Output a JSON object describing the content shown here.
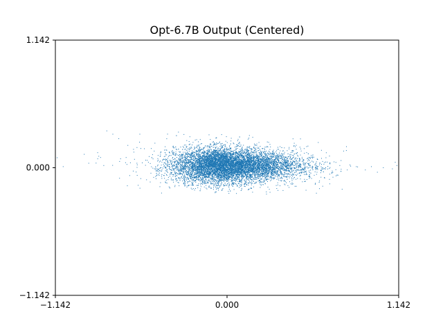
{
  "chart_data": {
    "type": "scatter",
    "title": "Opt-6.7B Output (Centered)",
    "xlabel": "",
    "ylabel": "",
    "xlim": [
      -1.142,
      1.142
    ],
    "ylim": [
      -1.142,
      1.142
    ],
    "x_ticks": [
      -1.142,
      0.0,
      1.142
    ],
    "y_ticks": [
      -1.142,
      0.0,
      1.142
    ],
    "x_tick_labels": [
      "−1.142",
      "0.000",
      "1.142"
    ],
    "y_tick_labels": [
      "−1.142",
      "0.000",
      "1.142"
    ],
    "grid": false,
    "marker_color": "#1f77b4",
    "series": [
      {
        "description": "dense point cloud",
        "core": {
          "x_center": 0.0,
          "y_center": 0.0,
          "x_range": [
            -0.42,
            0.62
          ],
          "y_range": [
            -0.2,
            0.28
          ]
        },
        "x_extent": [
          -1.14,
          1.13
        ],
        "y_extent": [
          -0.25,
          0.35
        ],
        "points": [
          [
            -1.13,
            0.09
          ],
          [
            -1.09,
            0.01
          ],
          [
            -0.95,
            0.12
          ],
          [
            -0.92,
            0.04
          ],
          [
            -0.86,
            0.08
          ],
          [
            -0.82,
            0.02
          ],
          [
            -0.8,
            0.33
          ],
          [
            -0.76,
            0.3
          ],
          [
            -0.72,
            0.26
          ],
          [
            -0.66,
            0.2
          ],
          [
            -0.62,
            0.14
          ],
          [
            -0.58,
            0.3
          ],
          [
            -0.55,
            0.17
          ],
          [
            -0.5,
            0.09
          ],
          [
            -0.48,
            0.22
          ],
          [
            0.62,
            0.04
          ],
          [
            0.7,
            -0.03
          ],
          [
            0.75,
            0.02
          ],
          [
            0.8,
            -0.02
          ],
          [
            0.86,
            0.01
          ],
          [
            0.92,
            -0.02
          ],
          [
            0.96,
            0.01
          ],
          [
            1.0,
            -0.04
          ],
          [
            1.04,
            0.0
          ],
          [
            1.1,
            -0.01
          ],
          [
            1.13,
            0.02
          ]
        ]
      }
    ]
  }
}
